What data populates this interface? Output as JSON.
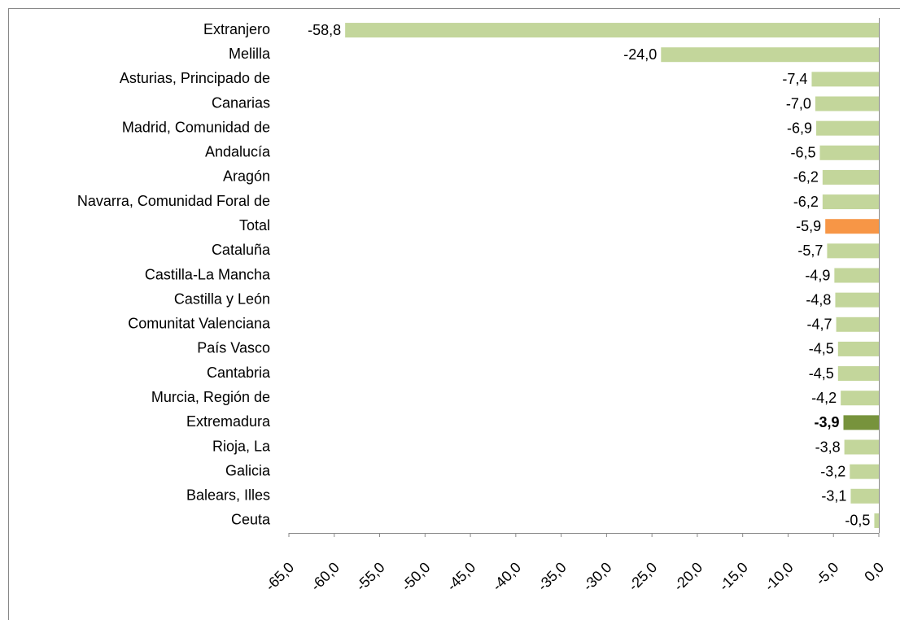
{
  "chart_data": {
    "type": "bar",
    "orientation": "horizontal",
    "categories": [
      "Extranjero",
      "Melilla",
      "Asturias, Principado de",
      "Canarias",
      "Madrid, Comunidad de",
      "Andalucía",
      "Aragón",
      "Navarra, Comunidad Foral de",
      "Total",
      "Cataluña",
      "Castilla-La Mancha",
      "Castilla y León",
      "Comunitat Valenciana",
      "País Vasco",
      "Cantabria",
      "Murcia, Región de",
      "Extremadura",
      "Rioja, La",
      "Galicia",
      "Balears, Illes",
      "Ceuta"
    ],
    "values": [
      -58.8,
      -24.0,
      -7.4,
      -7.0,
      -6.9,
      -6.5,
      -6.2,
      -6.2,
      -5.9,
      -5.7,
      -4.9,
      -4.8,
      -4.7,
      -4.5,
      -4.5,
      -4.2,
      -3.9,
      -3.8,
      -3.2,
      -3.1,
      -0.5
    ],
    "value_labels": [
      "-58,8",
      "-24,0",
      "-7,4",
      "-7,0",
      "-6,9",
      "-6,5",
      "-6,2",
      "-6,2",
      "-5,9",
      "-5,7",
      "-4,9",
      "-4,8",
      "-4,7",
      "-4,5",
      "-4,5",
      "-4,2",
      "-3,9",
      "-3,8",
      "-3,2",
      "-3,1",
      "-0,5"
    ],
    "colors": [
      "#c3d69b",
      "#c3d69b",
      "#c3d69b",
      "#c3d69b",
      "#c3d69b",
      "#c3d69b",
      "#c3d69b",
      "#c3d69b",
      "#f79646",
      "#c3d69b",
      "#c3d69b",
      "#c3d69b",
      "#c3d69b",
      "#c3d69b",
      "#c3d69b",
      "#c3d69b",
      "#77933c",
      "#c3d69b",
      "#c3d69b",
      "#c3d69b",
      "#c3d69b"
    ],
    "bold_labels": [
      false,
      false,
      false,
      false,
      false,
      false,
      false,
      false,
      false,
      false,
      false,
      false,
      false,
      false,
      false,
      false,
      true,
      false,
      false,
      false,
      false
    ],
    "xlim": [
      -65,
      0
    ],
    "xticks": [
      {
        "value": -65,
        "label": "-65,0"
      },
      {
        "value": -60,
        "label": "-60,0"
      },
      {
        "value": -55,
        "label": "-55,0"
      },
      {
        "value": -50,
        "label": "-50,0"
      },
      {
        "value": -45,
        "label": "-45,0"
      },
      {
        "value": -40,
        "label": "-40,0"
      },
      {
        "value": -35,
        "label": "-35,0"
      },
      {
        "value": -30,
        "label": "-30,0"
      },
      {
        "value": -25,
        "label": "-25,0"
      },
      {
        "value": -20,
        "label": "-20,0"
      },
      {
        "value": -15,
        "label": "-15,0"
      },
      {
        "value": -10,
        "label": "-10,0"
      },
      {
        "value": -5,
        "label": "-5,0"
      },
      {
        "value": 0,
        "label": "0,0"
      }
    ],
    "grid": false
  }
}
